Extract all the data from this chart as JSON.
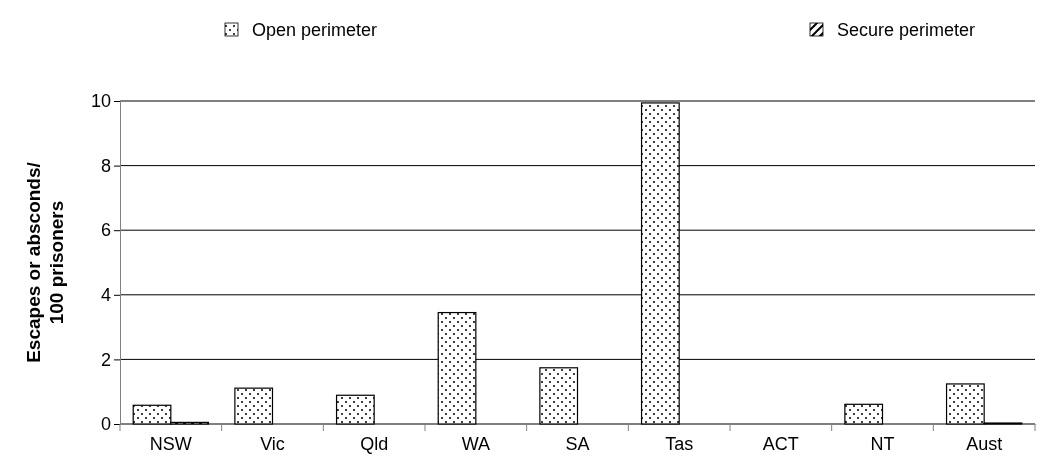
{
  "chart_data": {
    "type": "bar",
    "ylabel": "Escapes or absconds/\n100 prisoners",
    "categories": [
      "NSW",
      "Vic",
      "Qld",
      "WA",
      "SA",
      "Tas",
      "ACT",
      "NT",
      "Aust"
    ],
    "series": [
      {
        "name": "Open perimeter",
        "color": "#000000",
        "values": [
          0.58,
          1.11,
          0.89,
          3.45,
          1.74,
          9.94,
          0,
          0.61,
          1.24
        ]
      },
      {
        "name": "Secure perimeter",
        "color": "#000000",
        "values": [
          0.05,
          0,
          0,
          0,
          0,
          0,
          0,
          0,
          0.03
        ]
      }
    ],
    "ylim": [
      0,
      10
    ],
    "yticks": [
      0,
      2,
      4,
      6,
      8,
      10
    ],
    "grid": "y",
    "legend": "top"
  }
}
